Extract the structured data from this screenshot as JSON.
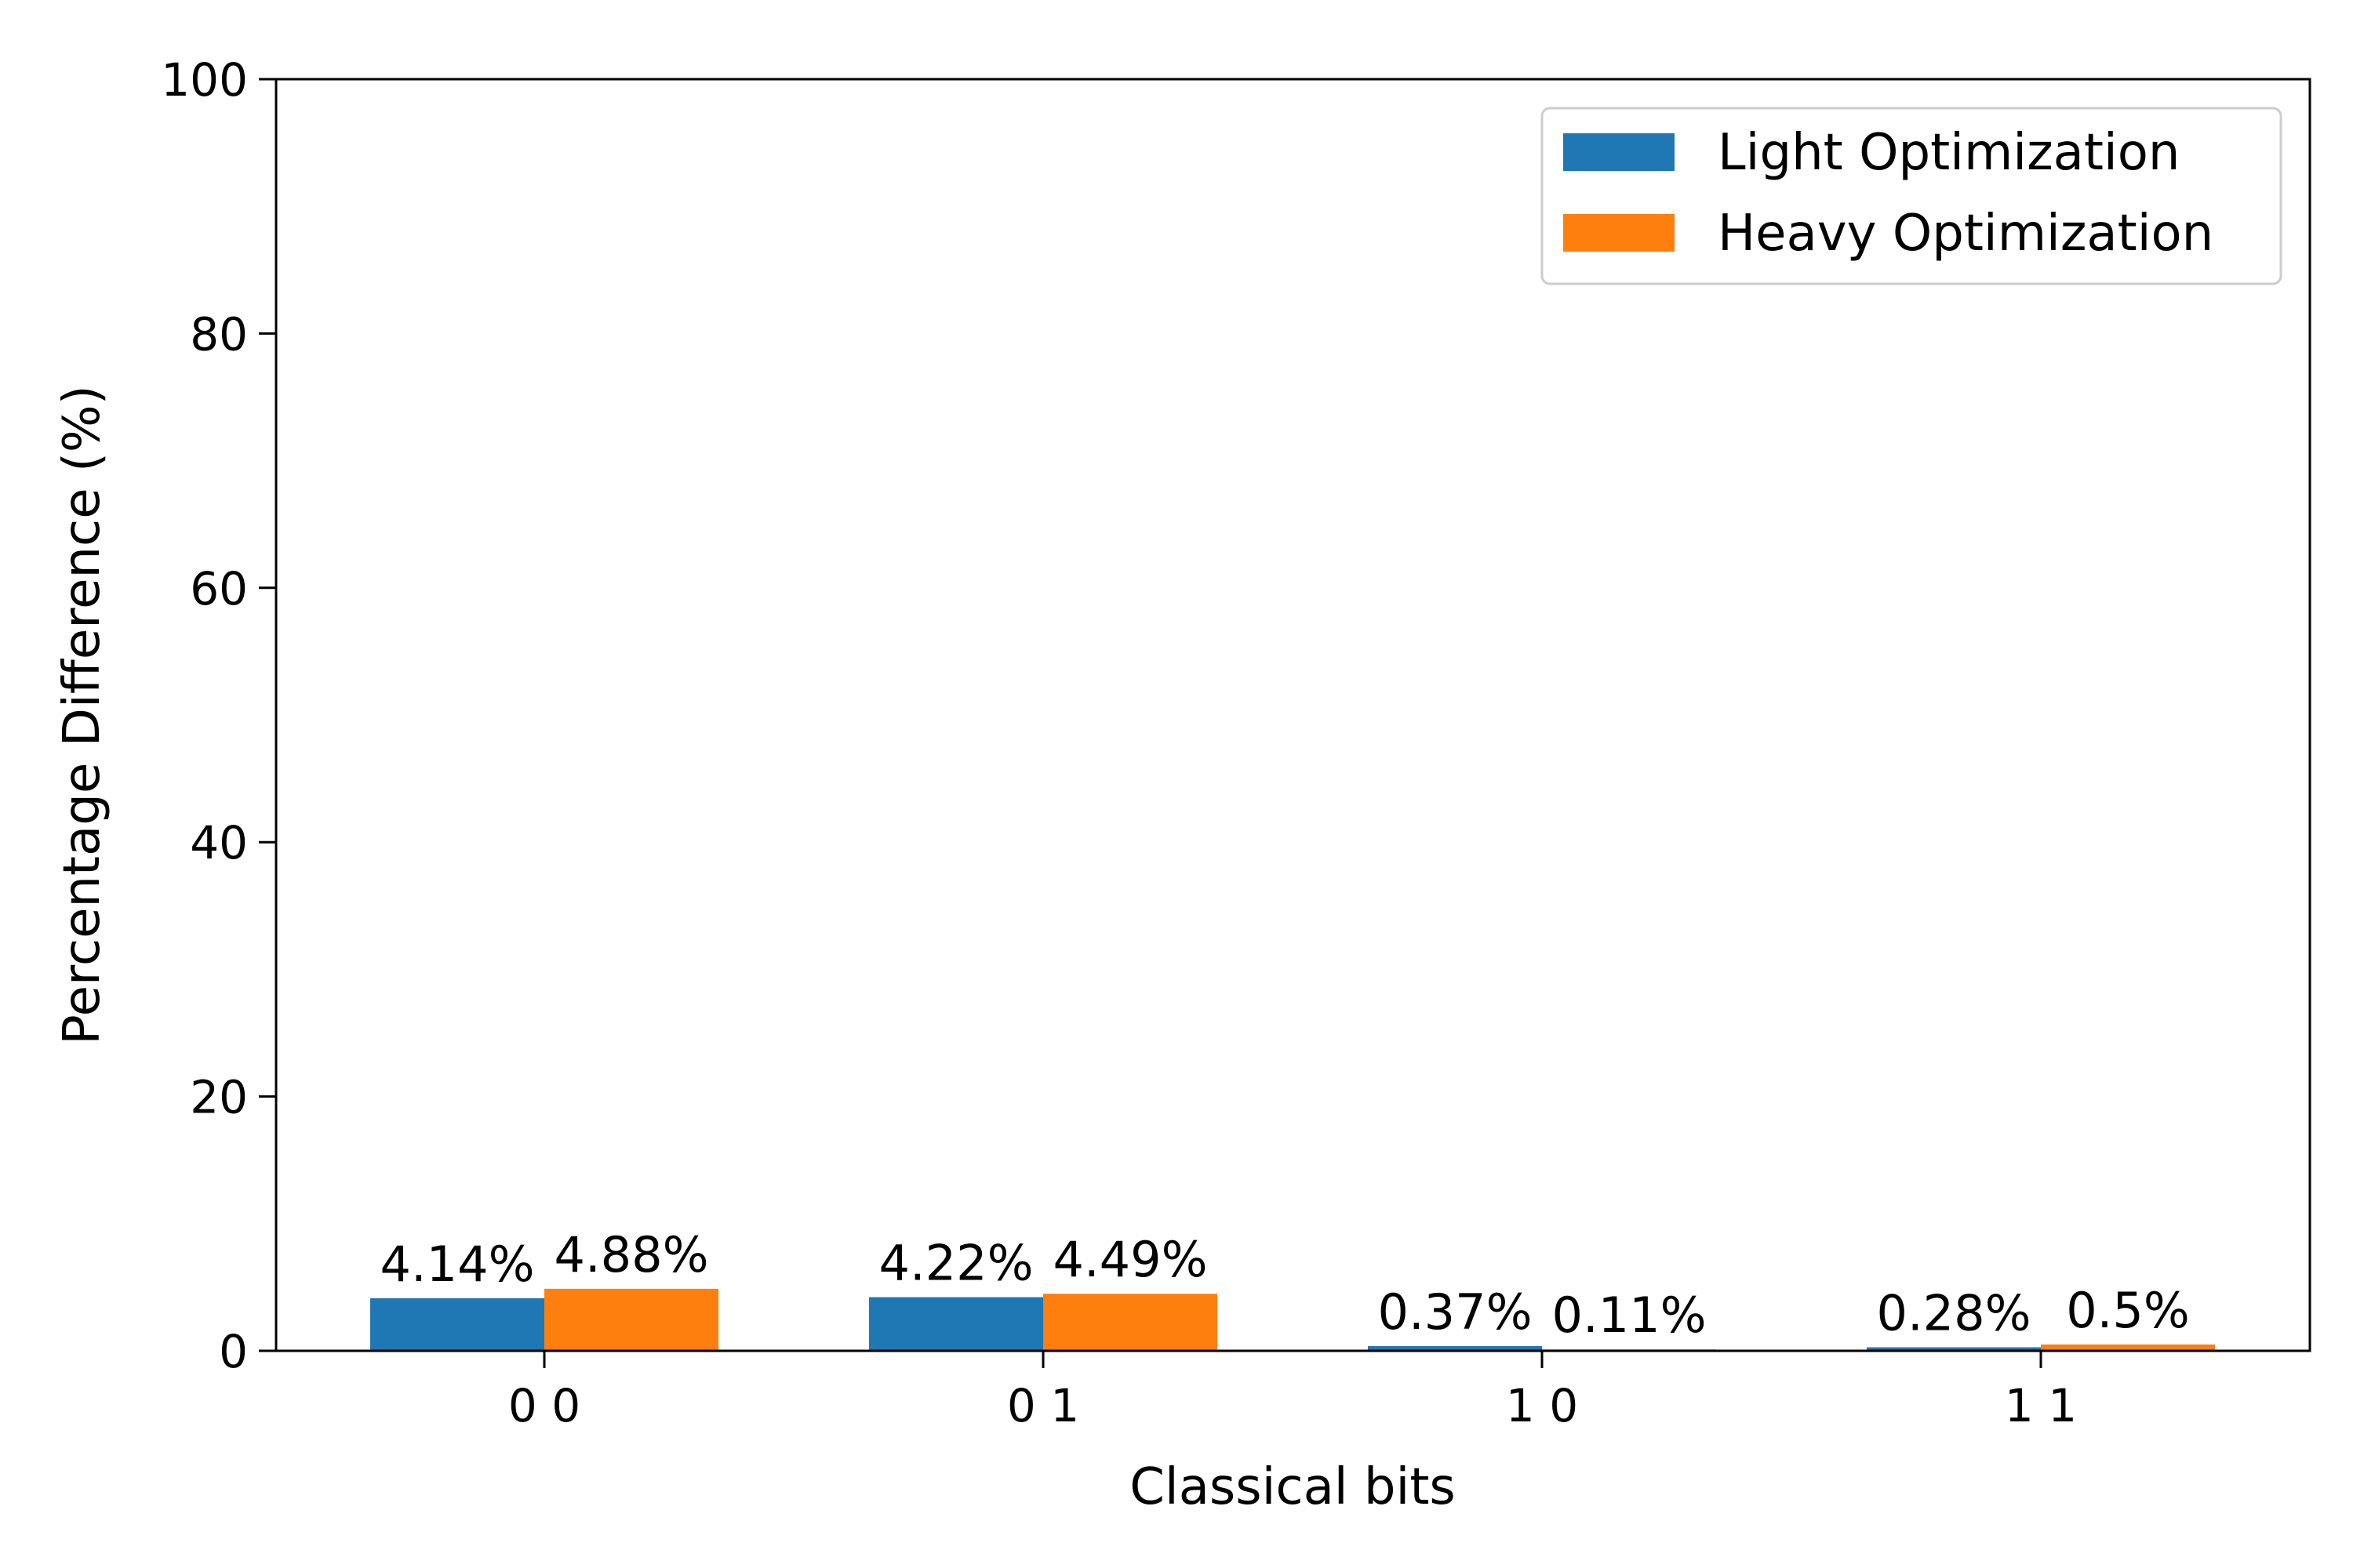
{
  "chart_data": {
    "type": "bar",
    "xlabel": "Classical bits",
    "ylabel": "Percentage Difference (%)",
    "ylim": [
      0,
      100
    ],
    "yticks": [
      "0",
      "20",
      "40",
      "60",
      "80",
      "100"
    ],
    "categories": [
      "0 0",
      "0 1",
      "1 0",
      "1 1"
    ],
    "series": [
      {
        "name": "Light Optimization",
        "color": "#1f77b4",
        "values": [
          4.14,
          4.22,
          0.37,
          0.28
        ],
        "labels": [
          "4.14%",
          "4.22%",
          "0.37%",
          "0.28%"
        ]
      },
      {
        "name": "Heavy Optimization",
        "color": "#ff7f0e",
        "values": [
          4.88,
          4.49,
          0.11,
          0.5
        ],
        "labels": [
          "4.88%",
          "4.49%",
          "0.11%",
          "0.5%"
        ]
      }
    ],
    "legend_position": "top-right",
    "grid": false
  }
}
